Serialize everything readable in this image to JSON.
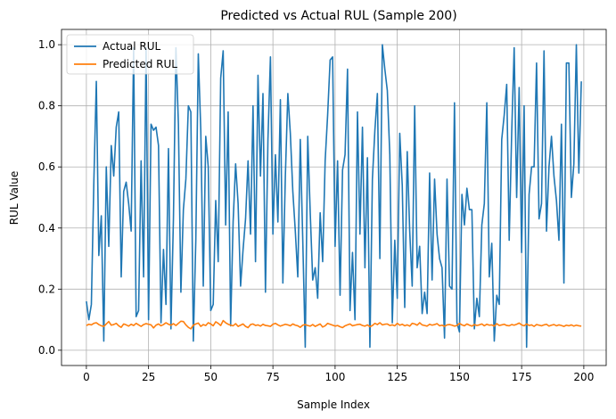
{
  "chart_data": {
    "type": "line",
    "title": "Predicted vs Actual RUL (Sample 200)",
    "xlabel": "Sample Index",
    "ylabel": "RUL Value",
    "xlim": [
      -10,
      209
    ],
    "ylim": [
      -0.05,
      1.05
    ],
    "xticks": [
      0,
      25,
      50,
      75,
      100,
      125,
      150,
      175,
      200
    ],
    "xtick_labels": [
      "0",
      "25",
      "50",
      "75",
      "100",
      "125",
      "150",
      "175",
      "200"
    ],
    "yticks": [
      0.0,
      0.2,
      0.4,
      0.6,
      0.8,
      1.0
    ],
    "ytick_labels": [
      "0.0",
      "0.2",
      "0.4",
      "0.6",
      "0.8",
      "1.0"
    ],
    "grid": true,
    "legend": "top-left",
    "series": [
      {
        "name": "Actual RUL",
        "color": "#1f77b4",
        "values": [
          0.16,
          0.1,
          0.15,
          0.55,
          0.88,
          0.31,
          0.44,
          0.03,
          0.6,
          0.34,
          0.67,
          0.57,
          0.73,
          0.78,
          0.24,
          0.52,
          0.55,
          0.48,
          0.39,
          0.99,
          0.11,
          0.13,
          0.62,
          0.24,
          0.99,
          0.1,
          0.74,
          0.72,
          0.73,
          0.67,
          0.09,
          0.33,
          0.15,
          0.66,
          0.07,
          0.43,
          0.99,
          0.74,
          0.19,
          0.46,
          0.56,
          0.8,
          0.78,
          0.03,
          0.36,
          0.97,
          0.72,
          0.21,
          0.7,
          0.6,
          0.13,
          0.15,
          0.49,
          0.29,
          0.89,
          0.98,
          0.41,
          0.78,
          0.08,
          0.42,
          0.61,
          0.48,
          0.21,
          0.33,
          0.43,
          0.62,
          0.38,
          0.8,
          0.29,
          0.9,
          0.57,
          0.84,
          0.19,
          0.69,
          0.96,
          0.38,
          0.64,
          0.42,
          0.82,
          0.22,
          0.57,
          0.84,
          0.71,
          0.52,
          0.39,
          0.24,
          0.69,
          0.36,
          0.01,
          0.7,
          0.45,
          0.23,
          0.27,
          0.17,
          0.45,
          0.29,
          0.62,
          0.77,
          0.95,
          0.96,
          0.34,
          0.62,
          0.18,
          0.59,
          0.64,
          0.92,
          0.13,
          0.32,
          0.1,
          0.78,
          0.38,
          0.73,
          0.27,
          0.63,
          0.01,
          0.56,
          0.72,
          0.84,
          0.3,
          1.0,
          0.92,
          0.85,
          0.64,
          0.09,
          0.36,
          0.17,
          0.71,
          0.54,
          0.14,
          0.65,
          0.39,
          0.21,
          0.8,
          0.27,
          0.34,
          0.12,
          0.19,
          0.12,
          0.58,
          0.23,
          0.56,
          0.38,
          0.3,
          0.27,
          0.04,
          0.56,
          0.21,
          0.2,
          0.81,
          0.09,
          0.06,
          0.51,
          0.41,
          0.53,
          0.46,
          0.46,
          0.07,
          0.17,
          0.11,
          0.41,
          0.48,
          0.81,
          0.24,
          0.35,
          0.03,
          0.18,
          0.15,
          0.69,
          0.77,
          0.87,
          0.36,
          0.71,
          0.99,
          0.5,
          0.86,
          0.32,
          0.8,
          0.01,
          0.51,
          0.6,
          0.6,
          0.94,
          0.43,
          0.48,
          0.98,
          0.39,
          0.6,
          0.7,
          0.57,
          0.49,
          0.36,
          0.74,
          0.22,
          0.94,
          0.94,
          0.5,
          0.61,
          1.0,
          0.58,
          0.88
        ]
      },
      {
        "name": "Predicted RUL",
        "color": "#ff7f0e",
        "values": [
          0.081,
          0.085,
          0.083,
          0.088,
          0.09,
          0.084,
          0.08,
          0.078,
          0.086,
          0.094,
          0.082,
          0.084,
          0.088,
          0.08,
          0.075,
          0.086,
          0.083,
          0.079,
          0.085,
          0.081,
          0.088,
          0.083,
          0.078,
          0.084,
          0.087,
          0.085,
          0.083,
          0.073,
          0.082,
          0.086,
          0.08,
          0.084,
          0.09,
          0.085,
          0.082,
          0.087,
          0.081,
          0.088,
          0.095,
          0.094,
          0.083,
          0.075,
          0.07,
          0.082,
          0.086,
          0.089,
          0.078,
          0.084,
          0.081,
          0.09,
          0.086,
          0.08,
          0.093,
          0.088,
          0.081,
          0.097,
          0.09,
          0.085,
          0.082,
          0.08,
          0.087,
          0.078,
          0.082,
          0.086,
          0.078,
          0.074,
          0.084,
          0.086,
          0.081,
          0.083,
          0.079,
          0.085,
          0.081,
          0.08,
          0.078,
          0.085,
          0.088,
          0.083,
          0.079,
          0.082,
          0.085,
          0.083,
          0.08,
          0.086,
          0.082,
          0.08,
          0.075,
          0.082,
          0.084,
          0.081,
          0.079,
          0.084,
          0.078,
          0.082,
          0.086,
          0.076,
          0.08,
          0.088,
          0.085,
          0.082,
          0.079,
          0.081,
          0.077,
          0.074,
          0.08,
          0.083,
          0.086,
          0.08,
          0.082,
          0.084,
          0.085,
          0.081,
          0.079,
          0.083,
          0.077,
          0.081,
          0.088,
          0.084,
          0.09,
          0.083,
          0.085,
          0.086,
          0.081,
          0.083,
          0.08,
          0.088,
          0.082,
          0.085,
          0.08,
          0.083,
          0.079,
          0.088,
          0.086,
          0.082,
          0.09,
          0.083,
          0.081,
          0.079,
          0.085,
          0.082,
          0.084,
          0.087,
          0.08,
          0.082,
          0.078,
          0.083,
          0.084,
          0.082,
          0.079,
          0.081,
          0.088,
          0.083,
          0.08,
          0.086,
          0.082,
          0.079,
          0.084,
          0.081,
          0.083,
          0.086,
          0.08,
          0.085,
          0.082,
          0.083,
          0.079,
          0.087,
          0.081,
          0.083,
          0.085,
          0.081,
          0.08,
          0.084,
          0.082,
          0.085,
          0.089,
          0.083,
          0.08,
          0.086,
          0.081,
          0.083,
          0.078,
          0.084,
          0.082,
          0.08,
          0.083,
          0.085,
          0.079,
          0.082,
          0.084,
          0.08,
          0.083,
          0.081,
          0.078,
          0.082,
          0.08,
          0.083,
          0.079,
          0.082,
          0.08,
          0.079
        ]
      }
    ]
  }
}
